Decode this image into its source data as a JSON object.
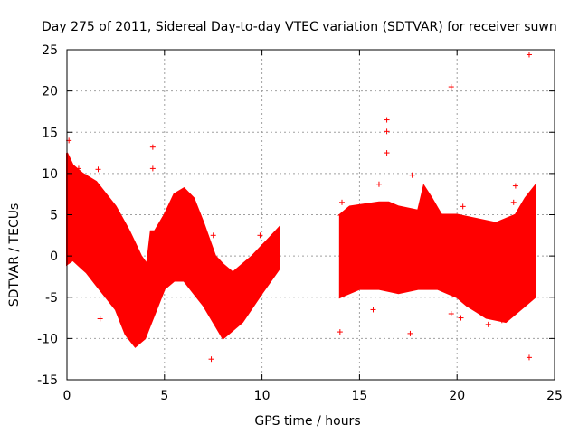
{
  "chart_data": {
    "type": "scatter",
    "title": "Day 275 of 2011, Sidereal Day-to-day VTEC variation (SDTVAR) for receiver suwn",
    "xlabel": "GPS time / hours",
    "ylabel": "SDTVAR / TECUs",
    "xlim": [
      0,
      25
    ],
    "ylim": [
      -15,
      25
    ],
    "x_ticks": [
      0,
      5,
      10,
      15,
      20,
      25
    ],
    "x_tick_labels": [
      "0",
      "5",
      "10",
      "15",
      "20",
      "25"
    ],
    "y_ticks": [
      -15,
      -10,
      -5,
      0,
      5,
      10,
      15,
      20,
      25
    ],
    "y_tick_labels": [
      "-15",
      "-10",
      "-5",
      "0",
      "5",
      "10",
      "15",
      "20",
      "25"
    ],
    "grid": true,
    "legend": "none",
    "marker": "plus",
    "color": "#ff0000",
    "band_upper": [
      [
        0.0,
        12.5
      ],
      [
        0.3,
        11
      ],
      [
        0.8,
        10
      ],
      [
        1.5,
        9
      ],
      [
        2.5,
        6
      ],
      [
        3.2,
        3
      ],
      [
        3.8,
        0
      ],
      [
        4.1,
        -1
      ],
      [
        4.3,
        3
      ],
      [
        4.5,
        3
      ],
      [
        5.0,
        5
      ],
      [
        5.5,
        7.5
      ],
      [
        6.0,
        8.2
      ],
      [
        6.5,
        7
      ],
      [
        7.0,
        4
      ],
      [
        7.6,
        0
      ],
      [
        8.0,
        -1
      ],
      [
        8.5,
        -2
      ],
      [
        9.5,
        0
      ],
      [
        10.3,
        2
      ],
      [
        10.9,
        3.5
      ]
    ],
    "band_lower": [
      [
        0.0,
        -1
      ],
      [
        0.3,
        -0.5
      ],
      [
        1.0,
        -2
      ],
      [
        2.0,
        -5
      ],
      [
        2.5,
        -6.5
      ],
      [
        3.0,
        -9.5
      ],
      [
        3.5,
        -11
      ],
      [
        4.0,
        -10
      ],
      [
        4.5,
        -7
      ],
      [
        5.0,
        -4
      ],
      [
        5.5,
        -3
      ],
      [
        6.0,
        -3
      ],
      [
        6.5,
        -4.5
      ],
      [
        7.0,
        -6
      ],
      [
        7.5,
        -8
      ],
      [
        8.0,
        -10
      ],
      [
        9.0,
        -8
      ],
      [
        10.0,
        -4.5
      ],
      [
        10.9,
        -1.5
      ]
    ],
    "band2_upper": [
      [
        14.0,
        5
      ],
      [
        14.5,
        6
      ],
      [
        16.0,
        6.5
      ],
      [
        16.5,
        6.5
      ],
      [
        17.0,
        6
      ],
      [
        18.0,
        5.5
      ],
      [
        18.3,
        8.5
      ],
      [
        18.7,
        7
      ],
      [
        19.2,
        5
      ],
      [
        20.0,
        5
      ],
      [
        21.0,
        4.5
      ],
      [
        22.0,
        4
      ],
      [
        23.0,
        5
      ],
      [
        23.5,
        7
      ],
      [
        24.0,
        8.5
      ]
    ],
    "band2_lower": [
      [
        14.0,
        -5
      ],
      [
        15.0,
        -4
      ],
      [
        16.0,
        -4
      ],
      [
        17.0,
        -4.5
      ],
      [
        18.0,
        -4
      ],
      [
        19.0,
        -4
      ],
      [
        20.0,
        -5
      ],
      [
        20.5,
        -6
      ],
      [
        21.5,
        -7.5
      ],
      [
        22.5,
        -8
      ],
      [
        23.0,
        -7
      ],
      [
        24.0,
        -5
      ]
    ],
    "points": [
      {
        "x": 1.6,
        "y": 10.5
      },
      {
        "x": 1.7,
        "y": -7.6
      },
      {
        "x": 4.4,
        "y": 13.2
      },
      {
        "x": 4.4,
        "y": 10.6
      },
      {
        "x": 7.5,
        "y": 2.5
      },
      {
        "x": 7.4,
        "y": -12.5
      },
      {
        "x": 14.0,
        "y": -9.2
      },
      {
        "x": 16.4,
        "y": 16.5
      },
      {
        "x": 16.4,
        "y": 15.1
      },
      {
        "x": 16.4,
        "y": 12.5
      },
      {
        "x": 17.6,
        "y": -9.4
      },
      {
        "x": 17.7,
        "y": 9.8
      },
      {
        "x": 19.7,
        "y": 20.5
      },
      {
        "x": 19.7,
        "y": -7.0
      },
      {
        "x": 20.2,
        "y": -7.5
      },
      {
        "x": 23.7,
        "y": 24.4
      },
      {
        "x": 23.7,
        "y": -12.3
      },
      {
        "x": 15.7,
        "y": -6.5
      },
      {
        "x": 16.0,
        "y": 8.7
      },
      {
        "x": 23.0,
        "y": 8.5
      },
      {
        "x": 22.9,
        "y": 6.5
      },
      {
        "x": 0.6,
        "y": 10.6
      },
      {
        "x": 0.1,
        "y": 14.0
      },
      {
        "x": 9.9,
        "y": 2.5
      },
      {
        "x": 20.3,
        "y": 6.0
      },
      {
        "x": 21.6,
        "y": -8.3
      },
      {
        "x": 22.3,
        "y": -7.8
      },
      {
        "x": 14.1,
        "y": 6.5
      }
    ]
  }
}
